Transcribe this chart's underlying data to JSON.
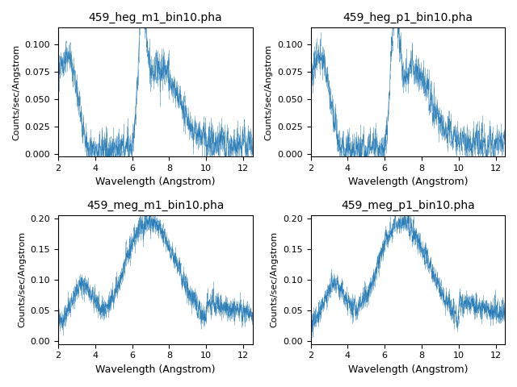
{
  "titles": [
    "459_heg_m1_bin10.pha",
    "459_heg_p1_bin10.pha",
    "459_meg_m1_bin10.pha",
    "459_meg_p1_bin10.pha"
  ],
  "xlabel": "Wavelength (Angstrom)",
  "ylabel_heg": "Counts/sec/Angstrom",
  "ylabel_meg": "Counts/sec/Angstrom",
  "xlim": [
    2.0,
    12.5
  ],
  "ylim_heg": [
    -0.002,
    0.115
  ],
  "ylim_meg": [
    -0.005,
    0.205
  ],
  "heg_yticks": [
    0.0,
    0.025,
    0.05,
    0.075,
    0.1
  ],
  "meg_yticks": [
    0.0,
    0.05,
    0.1,
    0.15,
    0.2
  ],
  "line_color": "#1f77b4",
  "figsize": [
    6.4,
    4.8
  ],
  "dpi": 100
}
